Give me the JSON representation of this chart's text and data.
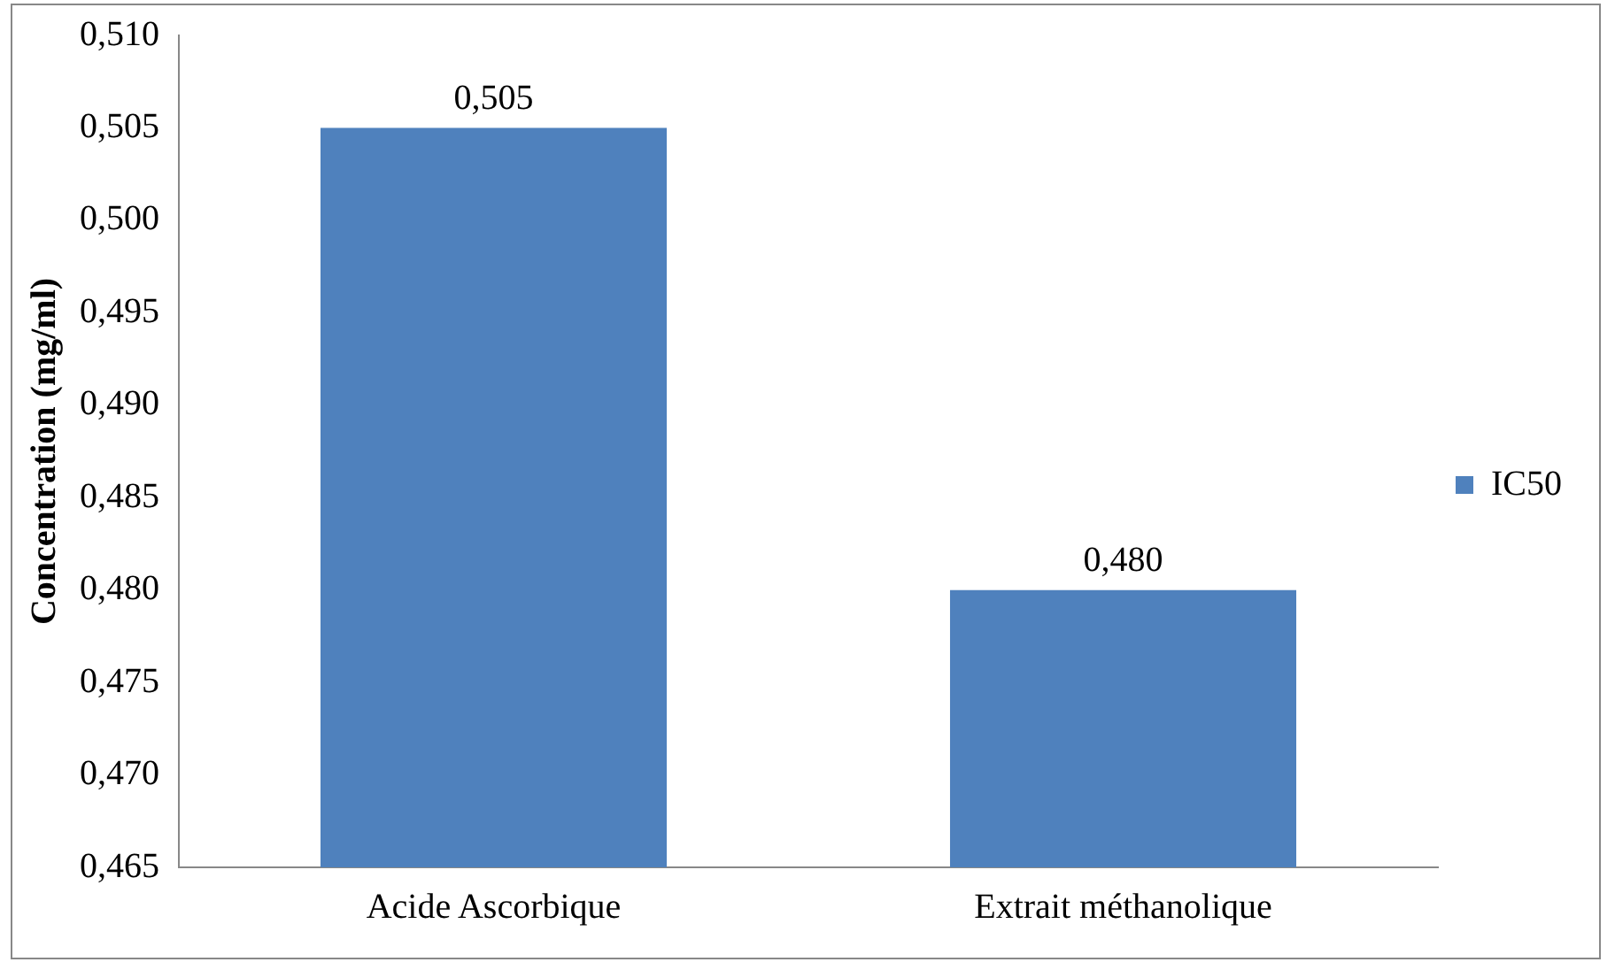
{
  "chart_data": {
    "type": "bar",
    "ylabel": "Concentration (mg/ml)",
    "categories": [
      "Acide Ascorbique",
      "Extrait méthanolique"
    ],
    "series": [
      {
        "name": "IC50",
        "color": "#4f81bd",
        "values": [
          0.505,
          0.48
        ],
        "value_labels": [
          "0,505",
          "0,480"
        ]
      }
    ],
    "ylim": [
      0.465,
      0.51
    ],
    "yticks": [
      {
        "value": 0.465,
        "label": "0,465"
      },
      {
        "value": 0.47,
        "label": "0,470"
      },
      {
        "value": 0.475,
        "label": "0,475"
      },
      {
        "value": 0.48,
        "label": "0,480"
      },
      {
        "value": 0.485,
        "label": "0,485"
      },
      {
        "value": 0.49,
        "label": "0,490"
      },
      {
        "value": 0.495,
        "label": "0,495"
      },
      {
        "value": 0.5,
        "label": "0,500"
      },
      {
        "value": 0.505,
        "label": "0,505"
      },
      {
        "value": 0.51,
        "label": "0,510"
      }
    ],
    "grid": false,
    "legend": "right"
  }
}
